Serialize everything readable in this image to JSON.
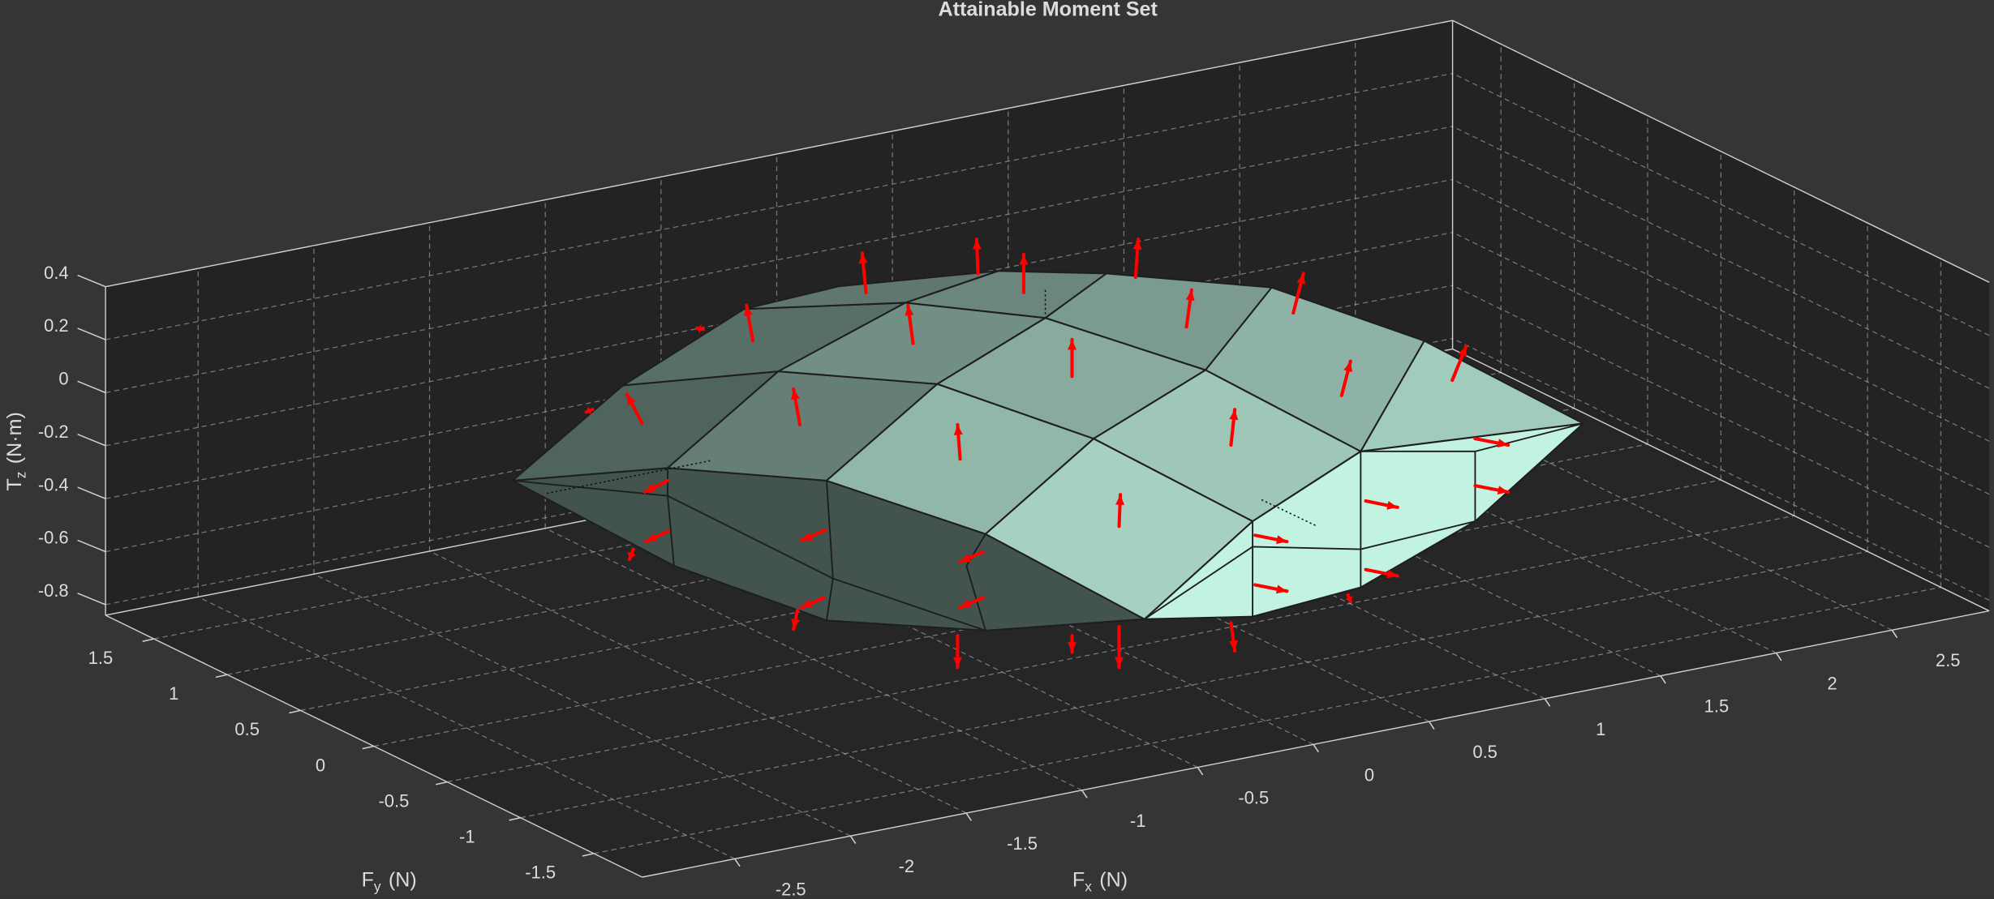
{
  "chart_data": {
    "type": "surface3d",
    "title": "Attainable Moment Set",
    "xlabel": {
      "symbol": "F",
      "subscript": "x",
      "unit": "(N)"
    },
    "ylabel": {
      "symbol": "F",
      "subscript": "y",
      "unit": "(N)"
    },
    "zlabel": {
      "symbol": "T",
      "subscript": "z",
      "unit": "(N·m)"
    },
    "xlim": [
      -2.9,
      2.92
    ],
    "ylim": [
      -1.83,
      1.83
    ],
    "zlim": [
      -0.84,
      0.4
    ],
    "xticks": [
      -2.5,
      -2,
      -1.5,
      -1,
      -0.5,
      0,
      0.5,
      1,
      1.5,
      2,
      2.5
    ],
    "yticks": [
      -1.5,
      -1,
      -0.5,
      0,
      0.5,
      1,
      1.5
    ],
    "zticks": [
      -0.8,
      -0.6,
      -0.4,
      -0.2,
      0,
      0.2,
      0.4
    ],
    "grid": true,
    "surface_color": "#9ec7b8",
    "arrow_color": "#ff0000"
  }
}
